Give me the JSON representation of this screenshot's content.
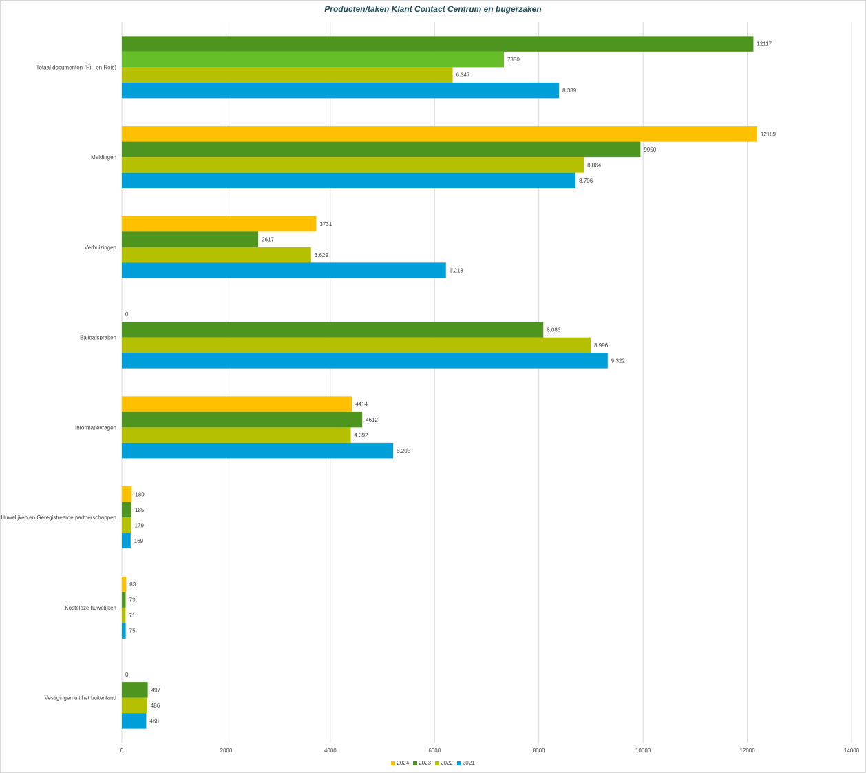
{
  "chart_data": {
    "type": "bar",
    "orientation": "horizontal",
    "title": "Producten/taken  Klant Contact Centrum en bugerzaken",
    "xlim": [
      0,
      14000
    ],
    "xticks": [
      0,
      2000,
      4000,
      6000,
      8000,
      10000,
      12000,
      14000
    ],
    "grid": true,
    "legend_position": "bottom",
    "categories": [
      "Totaal documenten (Rij- en Reis)",
      "Meldingen",
      "Verhuizingen",
      "Balieafspraken",
      "Informatievragen",
      "Huwelijken en Geregistreerde partnerschappen",
      "Kosteloze huwelijken",
      "Vestigingen uit het buitenland"
    ],
    "series": [
      {
        "name": "2024",
        "color": "#FFC000",
        "values": [
          12117,
          12189,
          3731,
          0,
          4414,
          189,
          83,
          0
        ],
        "labels": [
          "12117",
          "12189",
          "3731",
          "0",
          "4414",
          "189",
          "83",
          "0"
        ],
        "point_colors": {
          "0": "#4E951F"
        }
      },
      {
        "name": "2023",
        "color": "#4E951F",
        "values": [
          7330,
          9950,
          2617,
          8086,
          4612,
          185,
          73,
          497
        ],
        "labels": [
          "7330",
          "9950",
          "2617",
          "8.086",
          "4612",
          "185",
          "73",
          "497"
        ],
        "point_colors": {
          "0": "#66BE28"
        }
      },
      {
        "name": "2022",
        "color": "#B5C000",
        "values": [
          6347,
          8864,
          3629,
          8996,
          4392,
          179,
          71,
          486
        ],
        "labels": [
          "6.347",
          "8.864",
          "3.629",
          "8.996",
          "4.392",
          "179",
          "71",
          "486"
        ]
      },
      {
        "name": "2021",
        "color": "#009FDA",
        "values": [
          8389,
          8706,
          6218,
          9322,
          5205,
          169,
          75,
          468
        ],
        "labels": [
          "8.389",
          "8.706",
          "6.218",
          "9.322",
          "5.205",
          "169",
          "75",
          "468"
        ]
      }
    ]
  }
}
